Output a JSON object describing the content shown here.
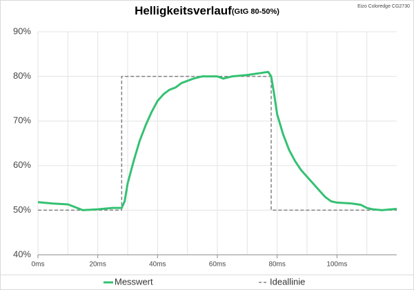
{
  "chart_data": {
    "type": "line",
    "title": "Helligkeitsverlauf",
    "subtitle": "(GtG 80-50%)",
    "note": "Eizo Coloredge CG2730",
    "xlim": [
      0,
      120
    ],
    "ylim": [
      40,
      90
    ],
    "xticks": [
      {
        "value": 0,
        "label": "0ms"
      },
      {
        "value": 20,
        "label": "20ms"
      },
      {
        "value": 40,
        "label": "40ms"
      },
      {
        "value": 60,
        "label": "60ms"
      },
      {
        "value": 80,
        "label": "80ms"
      },
      {
        "value": 100,
        "label": "100ms"
      }
    ],
    "xminor": [
      10,
      30,
      50,
      70,
      90,
      110
    ],
    "yticks": [
      {
        "value": 40,
        "label": "40%"
      },
      {
        "value": 50,
        "label": "50%"
      },
      {
        "value": 60,
        "label": "60%"
      },
      {
        "value": 70,
        "label": "70%"
      },
      {
        "value": 80,
        "label": "80%"
      },
      {
        "value": 90,
        "label": "90%"
      }
    ],
    "grid": true,
    "legend": "bottom",
    "series": [
      {
        "name": "Messwert",
        "color": "#33c172",
        "style": "solid",
        "x": [
          0,
          5,
          10,
          12,
          15,
          20,
          25,
          28,
          29,
          30,
          32,
          34,
          36,
          38,
          40,
          42,
          44,
          46,
          48,
          50,
          52,
          55,
          58,
          60,
          62,
          65,
          70,
          75,
          77,
          78,
          79,
          80,
          82,
          84,
          86,
          88,
          90,
          92,
          94,
          96,
          98,
          100,
          105,
          108,
          110,
          112,
          115,
          120
        ],
        "values": [
          51.8,
          51.5,
          51.3,
          50.8,
          50,
          50.2,
          50.5,
          50.5,
          52,
          56,
          61,
          65.5,
          69,
          72,
          74.5,
          76,
          77,
          77.5,
          78.5,
          79,
          79.5,
          80,
          80,
          80,
          79.5,
          80,
          80.3,
          80.8,
          81,
          80,
          76,
          71.5,
          67,
          63.5,
          61,
          59,
          57.5,
          56,
          54.5,
          53,
          52,
          51.7,
          51.5,
          51.2,
          50.5,
          50.2,
          50,
          50.3
        ]
      },
      {
        "name": "Ideallinie",
        "color": "#808080",
        "style": "dashed",
        "x": [
          0,
          28,
          28,
          78,
          78,
          120
        ],
        "values": [
          50,
          50,
          80,
          80,
          50,
          50
        ]
      }
    ]
  }
}
